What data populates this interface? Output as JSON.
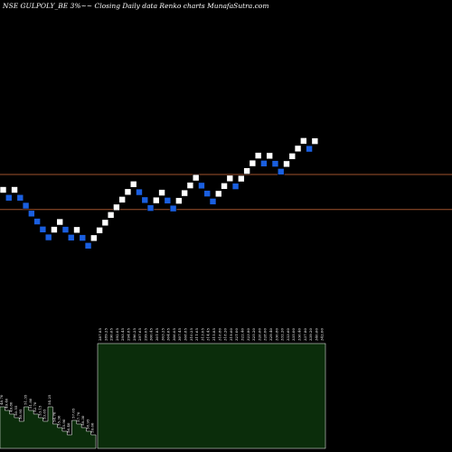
{
  "title": "NSE GULPOLY_BE 3%~~  Closing Daily data  Renko  charts MunafaSutra.com",
  "colors": {
    "background": "#000000",
    "up_brick": "#ffffff",
    "down_brick": "#1a5fe0",
    "brick_border": "#000000",
    "support_line": "#a0522d",
    "volume_fill": "#0b2d0b",
    "volume_stroke": "#ffffff"
  },
  "chart_data": {
    "type": "renko",
    "title": "NSE GULPOLY_BE 3%~~  Closing Daily data  Renko  charts MunafaSutra.com",
    "y_scale": "log",
    "brick_size_pct": 3,
    "bricks": [
      {
        "dir": "up",
        "value": 247.0
      },
      {
        "dir": "down",
        "value": 239.59
      },
      {
        "dir": "up",
        "value": 247.0
      },
      {
        "dir": "down",
        "value": 239.59
      },
      {
        "dir": "down",
        "value": 232.4
      },
      {
        "dir": "down",
        "value": 225.43
      },
      {
        "dir": "down",
        "value": 218.67
      },
      {
        "dir": "down",
        "value": 212.11
      },
      {
        "dir": "down",
        "value": 205.75
      },
      {
        "dir": "up",
        "value": 211.92
      },
      {
        "dir": "up",
        "value": 218.28
      },
      {
        "dir": "down",
        "value": 211.92
      },
      {
        "dir": "down",
        "value": 205.56
      },
      {
        "dir": "up",
        "value": 211.72
      },
      {
        "dir": "down",
        "value": 205.37
      },
      {
        "dir": "down",
        "value": 199.21
      },
      {
        "dir": "up",
        "value": 205.19
      },
      {
        "dir": "up",
        "value": 211.35
      },
      {
        "dir": "up",
        "value": 217.69
      },
      {
        "dir": "up",
        "value": 224.22
      },
      {
        "dir": "up",
        "value": 230.95
      },
      {
        "dir": "up",
        "value": 237.88
      },
      {
        "dir": "up",
        "value": 245.02
      },
      {
        "dir": "up",
        "value": 252.37
      },
      {
        "dir": "down",
        "value": 244.8
      },
      {
        "dir": "down",
        "value": 237.45
      },
      {
        "dir": "down",
        "value": 230.33
      },
      {
        "dir": "up",
        "value": 237.24
      },
      {
        "dir": "up",
        "value": 244.36
      },
      {
        "dir": "down",
        "value": 237.03
      },
      {
        "dir": "down",
        "value": 229.92
      },
      {
        "dir": "up",
        "value": 236.82
      },
      {
        "dir": "up",
        "value": 243.92
      },
      {
        "dir": "up",
        "value": 251.24
      },
      {
        "dir": "up",
        "value": 258.78
      },
      {
        "dir": "down",
        "value": 251.02
      },
      {
        "dir": "down",
        "value": 243.49
      },
      {
        "dir": "down",
        "value": 236.19
      },
      {
        "dir": "up",
        "value": 243.28
      },
      {
        "dir": "up",
        "value": 250.58
      },
      {
        "dir": "up",
        "value": 258.1
      },
      {
        "dir": "down",
        "value": 250.36
      },
      {
        "dir": "up",
        "value": 257.87
      },
      {
        "dir": "up",
        "value": 265.61
      },
      {
        "dir": "up",
        "value": 273.58
      },
      {
        "dir": "up",
        "value": 281.79
      },
      {
        "dir": "down",
        "value": 273.34
      },
      {
        "dir": "up",
        "value": 281.54
      },
      {
        "dir": "down",
        "value": 273.09
      },
      {
        "dir": "down",
        "value": 264.9
      },
      {
        "dir": "up",
        "value": 272.85
      },
      {
        "dir": "up",
        "value": 281.04
      },
      {
        "dir": "up",
        "value": 289.47
      },
      {
        "dir": "up",
        "value": 298.15
      },
      {
        "dir": "down",
        "value": 289.21
      },
      {
        "dir": "up",
        "value": 297.89
      }
    ],
    "reference_lines": [
      {
        "value": 262.0
      },
      {
        "value": 229.0
      }
    ],
    "volume_labels_left": [
      "48.70",
      "49.40",
      "49.80",
      "50.55",
      "50.95",
      "51.35",
      "51.80",
      "52.70",
      "53.15",
      "53.65",
      "54.25",
      "54.70",
      "55.30",
      "55.90",
      "56.40",
      "57.05",
      "57.70",
      "58.30",
      "58.95",
      "59.60"
    ],
    "volume_labels_right": [
      "287.85",
      "289.25",
      "290.65",
      "292.05",
      "293.45",
      "294.85",
      "296.25",
      "297.65",
      "299.05",
      "300.45",
      "301.85",
      "303.25",
      "304.65",
      "306.05",
      "307.45",
      "308.85",
      "310.25",
      "311.65",
      "313.05",
      "314.45",
      "315.85",
      "316.80",
      "318.20",
      "319.60",
      "321.00",
      "322.40",
      "323.80",
      "325.20",
      "326.60",
      "328.00",
      "329.40",
      "330.80",
      "332.20",
      "333.60",
      "335.00",
      "336.40",
      "337.80",
      "339.20",
      "340.60",
      "342.00"
    ]
  }
}
